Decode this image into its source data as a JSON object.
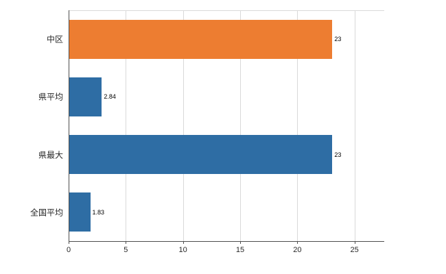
{
  "chart_data": {
    "type": "bar",
    "orientation": "horizontal",
    "title": "",
    "categories": [
      "中区",
      "県平均",
      "県最大",
      "全国平均"
    ],
    "values": [
      23,
      2.84,
      23,
      1.83
    ],
    "value_labels": [
      "23",
      "2.84",
      "23",
      "1.83"
    ],
    "bar_colors": [
      "#ed7d31",
      "#2e6da4",
      "#2e6da4",
      "#2e6da4"
    ],
    "x_ticks": [
      0,
      5,
      10,
      15,
      20,
      25
    ],
    "x_tick_labels": [
      "0",
      "5",
      "10",
      "15",
      "20",
      "25"
    ],
    "xlim": [
      0,
      27.6
    ],
    "grid": "vertical",
    "legend": "none",
    "colors": {
      "background": "#ffffff",
      "grid_line": "#d9d9d9",
      "axis_line": "#4d4d4d",
      "tick_mark": "#4d4d4d",
      "text": "#262626"
    }
  }
}
